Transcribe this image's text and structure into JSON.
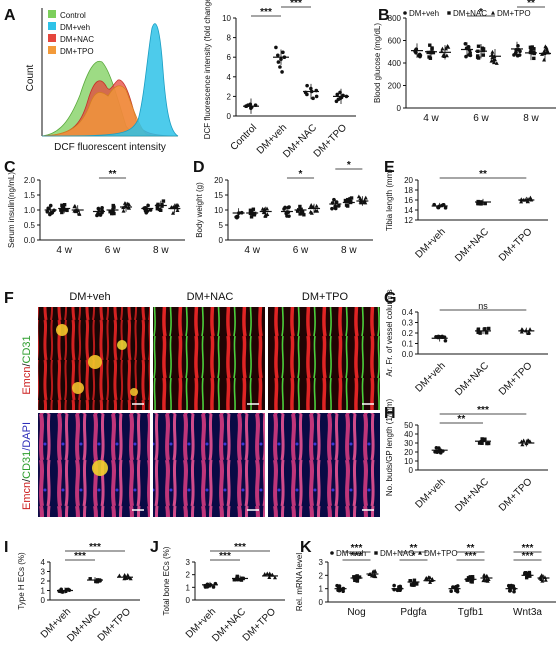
{
  "panels": {
    "A": "A",
    "B": "B",
    "C": "C",
    "D": "D",
    "E": "E",
    "F": "F",
    "G": "G",
    "H": "H",
    "I": "I",
    "J": "J",
    "K": "K"
  },
  "flow": {
    "ylabel": "Count",
    "xlabel": "DCF fluorescent intensity",
    "legend": [
      {
        "name": "Control",
        "color": "#7ccf5b"
      },
      {
        "name": "DM+veh",
        "color": "#2ec2e8"
      },
      {
        "name": "DM+NAC",
        "color": "#e5463d"
      },
      {
        "name": "DM+TPO",
        "color": "#f39a3a"
      }
    ]
  },
  "images": {
    "col_labels": [
      "DM+veh",
      "DM+NAC",
      "DM+TPO"
    ],
    "top_stain": {
      "a": "Emcn",
      "b": "/",
      "c": "CD31"
    },
    "bottom_stain": {
      "a": "Emcn",
      "b": "/",
      "c": "CD31",
      "d": "/DAPI"
    }
  },
  "legends_time": [
    "DM+veh",
    "DM+NAC",
    "DM+TPO"
  ],
  "legends_k": [
    "DM+veh",
    "DM+NAC",
    "DM+TPO"
  ],
  "chart_data": [
    {
      "panel": "A",
      "type": "scatter",
      "ylabel": "DCF fluorescence intensity (fold change)",
      "categories": [
        "Control",
        "DM+veh",
        "DM+NAC",
        "DM+TPO"
      ],
      "ylim": [
        0,
        10
      ],
      "yticks": [
        "0",
        "2",
        "4",
        "6",
        "8",
        "10"
      ],
      "means": [
        1.0,
        6.0,
        2.5,
        2.0
      ],
      "points": [
        [
          0.8,
          0.9,
          1.0,
          1.1,
          1.2,
          0.9,
          1.0,
          1.1
        ],
        [
          4.5,
          5.0,
          5.5,
          6.0,
          6.5,
          7.0,
          5.8,
          6.2
        ],
        [
          1.8,
          2.2,
          2.5,
          2.8,
          3.1,
          2.4,
          2.6,
          2.0
        ],
        [
          1.5,
          1.8,
          2.0,
          2.2,
          2.4,
          1.9,
          2.1,
          1.7
        ]
      ],
      "sig": [
        "***",
        "***",
        "***"
      ]
    },
    {
      "panel": "B",
      "type": "scatter",
      "ylabel": "Blood glucose (mg/dL)",
      "categories": [
        "4 w",
        "6 w",
        "8 w"
      ],
      "ylim": [
        0,
        800
      ],
      "yticks": [
        "0",
        "200",
        "400",
        "600",
        "800"
      ],
      "series": [
        {
          "name": "DM+veh",
          "mean": [
            510,
            520,
            525
          ]
        },
        {
          "name": "DM+NAC",
          "mean": [
            500,
            505,
            490
          ]
        },
        {
          "name": "DM+TPO",
          "mean": [
            495,
            460,
            485
          ]
        }
      ],
      "sig": [
        "*",
        "**"
      ]
    },
    {
      "panel": "C",
      "type": "scatter",
      "ylabel": "Serum insulin(ng/mL)",
      "categories": [
        "4 w",
        "6 w",
        "8 w"
      ],
      "ylim": [
        0,
        2.0
      ],
      "yticks": [
        "0.0",
        "0.5",
        "1.0",
        "1.5",
        "2.0"
      ],
      "series": [
        {
          "name": "DM+veh",
          "mean": [
            1.0,
            0.95,
            1.05
          ]
        },
        {
          "name": "DM+NAC",
          "mean": [
            1.05,
            1.0,
            1.15
          ]
        },
        {
          "name": "DM+TPO",
          "mean": [
            1.0,
            1.1,
            1.05
          ]
        }
      ],
      "sig": [
        "**"
      ]
    },
    {
      "panel": "D",
      "type": "scatter",
      "ylabel": "Body weight (g)",
      "categories": [
        "4 w",
        "6 w",
        "8 w"
      ],
      "ylim": [
        0,
        20
      ],
      "yticks": [
        "0",
        "5",
        "10",
        "15",
        "20"
      ],
      "series": [
        {
          "name": "DM+veh",
          "mean": [
            9,
            9.5,
            12
          ]
        },
        {
          "name": "DM+NAC",
          "mean": [
            9,
            10,
            12.5
          ]
        },
        {
          "name": "DM+TPO",
          "mean": [
            9.5,
            10.5,
            13
          ]
        }
      ],
      "sig": [
        "*",
        "*"
      ]
    },
    {
      "panel": "E",
      "type": "scatter",
      "ylabel": "Tibia length (mm)",
      "categories": [
        "DM+veh",
        "DM+NAC",
        "DM+TPO"
      ],
      "ylim": [
        12,
        20
      ],
      "yticks": [
        "12",
        "14",
        "16",
        "18",
        "20"
      ],
      "means": [
        14.8,
        15.6,
        16.0
      ],
      "sig": [
        "**"
      ]
    },
    {
      "panel": "G",
      "type": "scatter",
      "ylabel": "Ar. Fr. of vessel columns",
      "categories": [
        "DM+veh",
        "DM+NAC",
        "DM+TPO"
      ],
      "ylim": [
        0,
        0.4
      ],
      "yticks": [
        "0.0",
        "0.1",
        "0.2",
        "0.3",
        "0.4"
      ],
      "means": [
        0.15,
        0.22,
        0.22
      ],
      "sig": [
        "ns"
      ]
    },
    {
      "panel": "H",
      "type": "scatter",
      "ylabel": "No. buds/GP length (1/mm)",
      "categories": [
        "DM+veh",
        "DM+NAC",
        "DM+TPO"
      ],
      "ylim": [
        0,
        50
      ],
      "yticks": [
        "0",
        "10",
        "20",
        "30",
        "40",
        "50"
      ],
      "means": [
        22,
        32,
        30
      ],
      "sig": [
        "**",
        "***"
      ]
    },
    {
      "panel": "I",
      "type": "scatter",
      "ylabel": "Type H ECs (%)",
      "categories": [
        "DM+veh",
        "DM+NAC",
        "DM+TPO"
      ],
      "ylim": [
        0,
        4
      ],
      "yticks": [
        "0",
        "1",
        "2",
        "3",
        "4"
      ],
      "means": [
        1.0,
        2.1,
        2.4
      ],
      "sig": [
        "***",
        "***"
      ]
    },
    {
      "panel": "J",
      "type": "scatter",
      "ylabel": "Total bone ECs (%)",
      "categories": [
        "DM+veh",
        "DM+NAC",
        "DM+TPO"
      ],
      "ylim": [
        0,
        3
      ],
      "yticks": [
        "0",
        "1",
        "2",
        "3"
      ],
      "means": [
        1.2,
        1.7,
        1.9
      ],
      "sig": [
        "***",
        "***"
      ]
    },
    {
      "panel": "K",
      "type": "scatter",
      "ylabel": "Rel. mRNA level",
      "categories": [
        "Nog",
        "Pdgfa",
        "Tgfb1",
        "Wnt3a"
      ],
      "ylim": [
        0,
        3
      ],
      "yticks": [
        "0",
        "1",
        "2",
        "3"
      ],
      "series": [
        {
          "name": "DM+veh",
          "mean": [
            1,
            1,
            1,
            1
          ]
        },
        {
          "name": "DM+NAC",
          "mean": [
            1.8,
            1.5,
            1.7,
            2.0
          ]
        },
        {
          "name": "DM+TPO",
          "mean": [
            2.1,
            1.6,
            1.8,
            1.8
          ]
        }
      ],
      "sig": [
        "***",
        "***",
        "*",
        "**",
        "***",
        "**",
        "***",
        "***",
        "***"
      ]
    }
  ]
}
